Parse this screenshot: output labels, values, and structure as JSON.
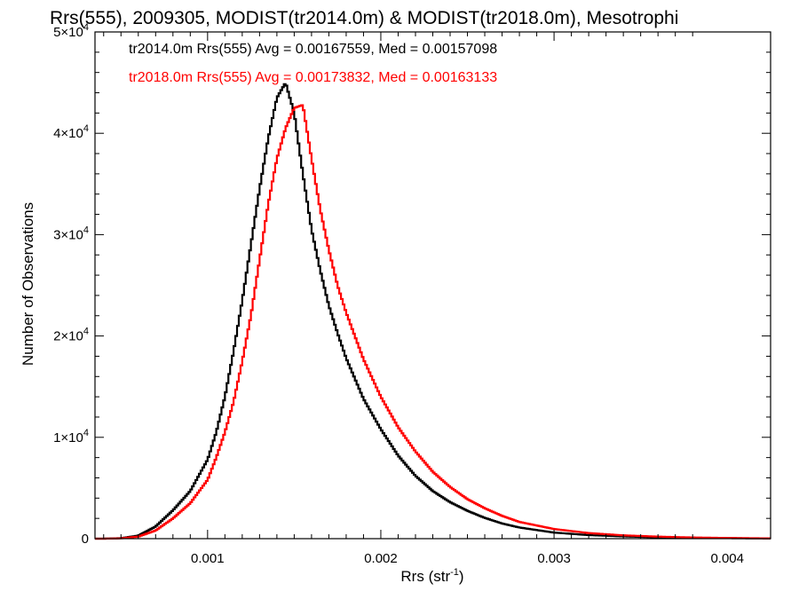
{
  "chart_data": {
    "type": "line",
    "title": "Rrs(555), 2009305, MODIST(tr2014.0m) & MODIST(tr2018.0m), Mesotrophi",
    "xlabel": {
      "base": "Rrs (str",
      "sup": "-1",
      "close": ")"
    },
    "ylabel": "Number of Observations",
    "xlim": [
      0.00035,
      0.00425
    ],
    "ylim": [
      0,
      50000
    ],
    "grid": false,
    "legend_placement": "top-left",
    "x_ticks": [
      {
        "value": 0.001,
        "label": "0.001"
      },
      {
        "value": 0.002,
        "label": "0.002"
      },
      {
        "value": 0.003,
        "label": "0.003"
      },
      {
        "value": 0.004,
        "label": "0.004"
      }
    ],
    "y_ticks": [
      {
        "value": 0,
        "mant": "0",
        "exp": ""
      },
      {
        "value": 10000,
        "mant": "1×10",
        "exp": "4"
      },
      {
        "value": 20000,
        "mant": "2×10",
        "exp": "4"
      },
      {
        "value": 30000,
        "mant": "3×10",
        "exp": "4"
      },
      {
        "value": 40000,
        "mant": "4×10",
        "exp": "4"
      },
      {
        "value": 50000,
        "mant": "5×10",
        "exp": "4"
      }
    ],
    "series": [
      {
        "legend": "tr2014.0m Rrs(555) Avg = 0.00167559, Med = 0.00157098",
        "color": "#000000",
        "x": [
          0.0004,
          0.0005,
          0.0006,
          0.0007,
          0.0008,
          0.0009,
          0.001,
          0.00105,
          0.0011,
          0.00115,
          0.0012,
          0.00125,
          0.0013,
          0.00135,
          0.0014,
          0.00145,
          0.0015,
          0.00155,
          0.0016,
          0.00165,
          0.0017,
          0.00175,
          0.0018,
          0.0019,
          0.002,
          0.0021,
          0.0022,
          0.0023,
          0.0024,
          0.0025,
          0.0026,
          0.0027,
          0.0028,
          0.003,
          0.0032,
          0.0034,
          0.0036,
          0.0038,
          0.004,
          0.00425
        ],
        "y": [
          0,
          50,
          300,
          1200,
          2800,
          4700,
          7800,
          10500,
          14000,
          18500,
          23500,
          29000,
          34500,
          39500,
          43500,
          45000,
          42000,
          36000,
          30500,
          26500,
          23000,
          20300,
          17800,
          13800,
          10800,
          8200,
          6200,
          4700,
          3600,
          2750,
          2050,
          1500,
          1100,
          600,
          350,
          220,
          130,
          80,
          50,
          20
        ]
      },
      {
        "legend": "tr2018.0m Rrs(555) Avg = 0.00173832, Med = 0.00163133",
        "color": "#ff0000",
        "x": [
          0.0004,
          0.0005,
          0.0006,
          0.0007,
          0.0008,
          0.0009,
          0.001,
          0.00105,
          0.0011,
          0.00115,
          0.0012,
          0.00125,
          0.0013,
          0.00135,
          0.0014,
          0.00145,
          0.0015,
          0.00155,
          0.0016,
          0.00165,
          0.0017,
          0.00175,
          0.0018,
          0.0019,
          0.002,
          0.0021,
          0.0022,
          0.0023,
          0.0024,
          0.0025,
          0.0026,
          0.0027,
          0.0028,
          0.003,
          0.0032,
          0.0034,
          0.0036,
          0.0038,
          0.004,
          0.00425
        ],
        "y": [
          0,
          30,
          200,
          800,
          2000,
          3500,
          5800,
          8000,
          10500,
          13500,
          17500,
          22000,
          27500,
          33000,
          37500,
          40500,
          42500,
          42800,
          37500,
          32500,
          28500,
          25000,
          22300,
          17700,
          14000,
          11000,
          8600,
          6600,
          5100,
          3900,
          3000,
          2250,
          1650,
          950,
          550,
          330,
          200,
          120,
          70,
          30
        ]
      }
    ]
  }
}
